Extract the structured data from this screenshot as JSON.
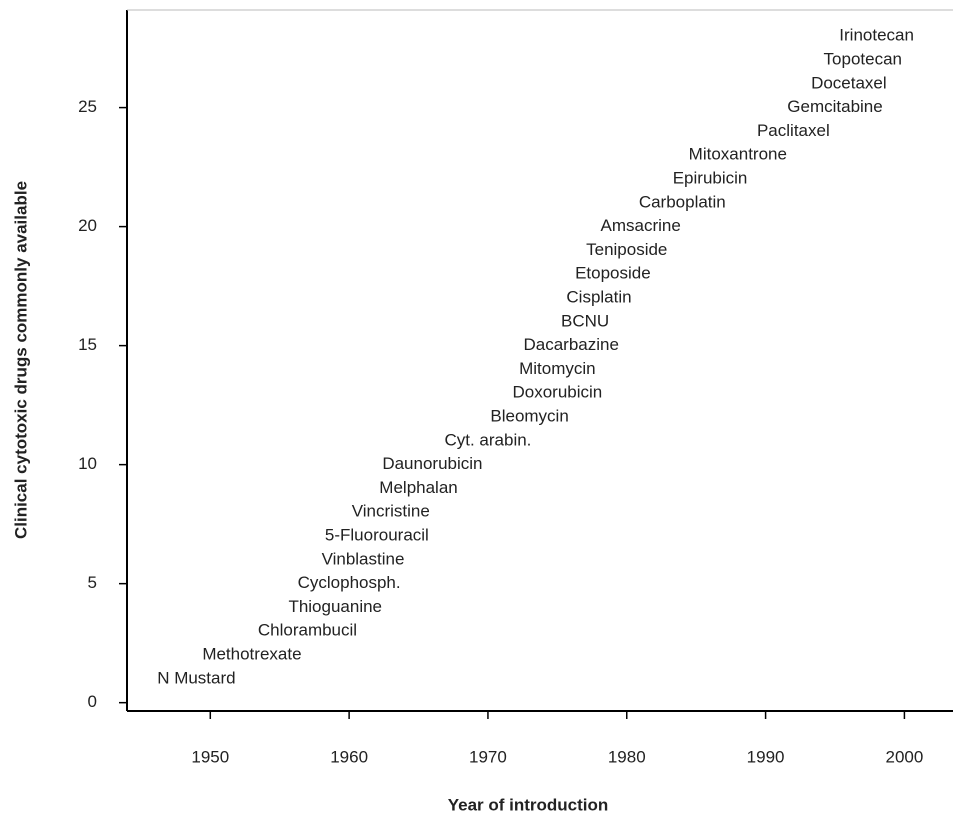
{
  "chart_data": {
    "type": "scatter",
    "x_label": "Year of introduction",
    "y_label": "Clinical cytotoxic drugs commonly available",
    "labels": [
      "N Mustard",
      "Methotrexate",
      "Chlorambucil",
      "Thioguanine",
      "Cyclophosph.",
      "Vinblastine",
      "5-Fluorouracil",
      "Vincristine",
      "Melphalan",
      "Daunorubicin",
      "Cyt. arabin.",
      "Bleomycin",
      "Doxorubicin",
      "Mitomycin",
      "Dacarbazine",
      "BCNU",
      "Cisplatin",
      "Etoposide",
      "Teniposide",
      "Amsacrine",
      "Carboplatin",
      "Epirubicin",
      "Mitoxantrone",
      "Paclitaxel",
      "Gemcitabine",
      "Docetaxel",
      "Topotecan",
      "Irinotecan"
    ],
    "x": [
      1949,
      1953,
      1957,
      1959,
      1960,
      1961,
      1962,
      1963,
      1965,
      1966,
      1970,
      1973,
      1975,
      1975,
      1976,
      1977,
      1978,
      1979,
      1980,
      1981,
      1984,
      1986,
      1988,
      1992,
      1995,
      1996,
      1997,
      1998
    ],
    "values": [
      1,
      2,
      3,
      4,
      5,
      6,
      7,
      8,
      9,
      10,
      11,
      12,
      13,
      14,
      15,
      16,
      17,
      18,
      19,
      20,
      21,
      22,
      23,
      24,
      25,
      26,
      27,
      28
    ],
    "xlim": [
      1944,
      2003.5
    ],
    "ylim": [
      -0.35,
      29.1
    ],
    "xticks": [
      1950,
      1960,
      1970,
      1980,
      1990,
      2000
    ],
    "yticks": [
      0,
      5,
      10,
      15,
      20,
      25
    ]
  }
}
